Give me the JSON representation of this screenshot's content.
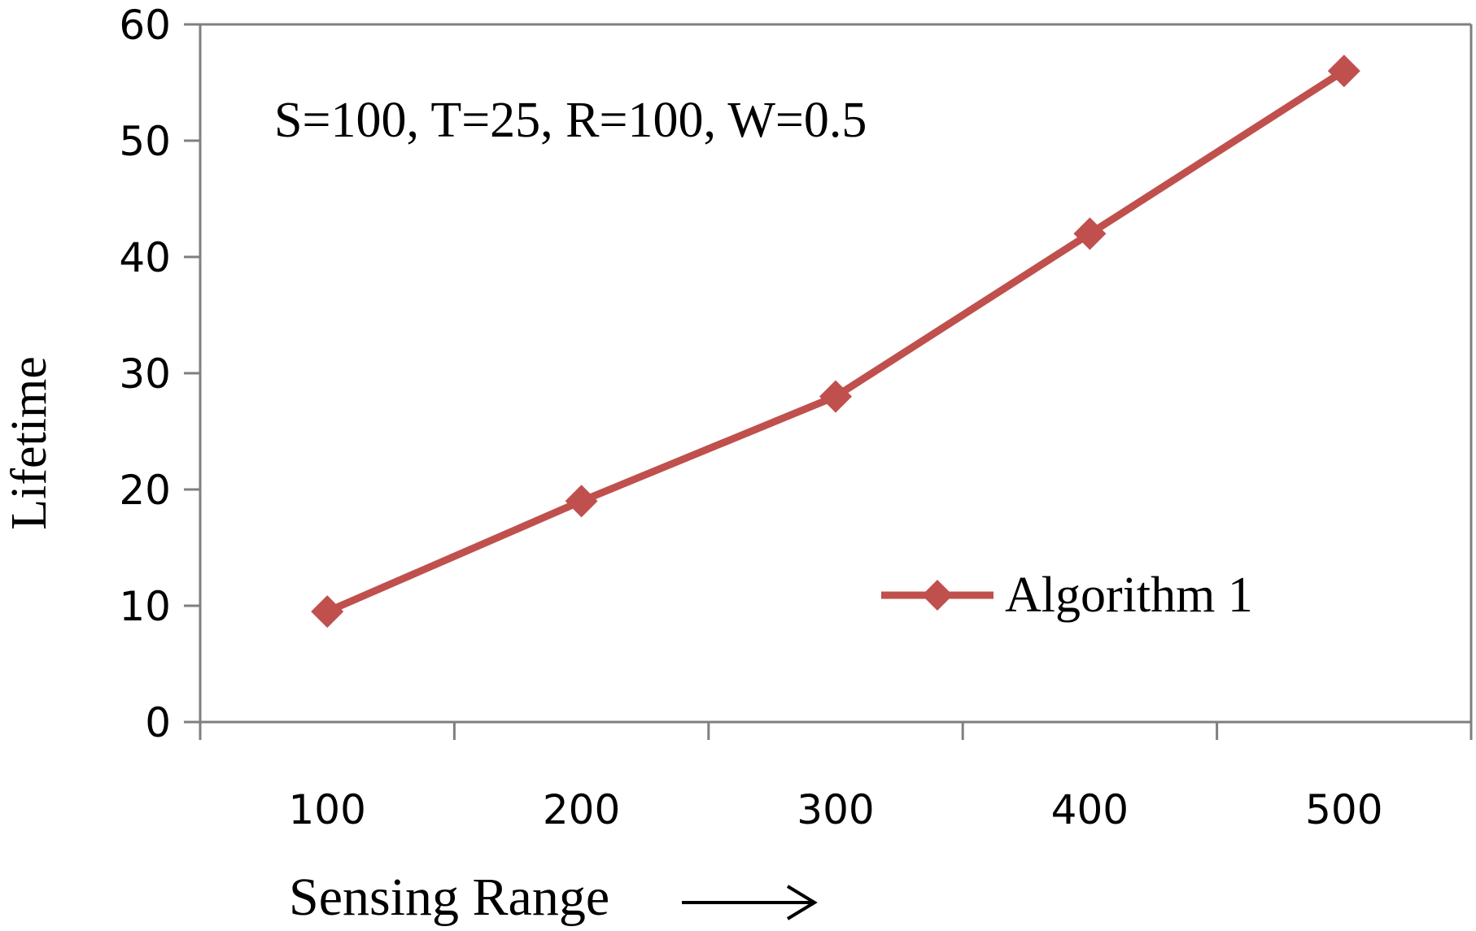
{
  "chart_data": {
    "type": "line",
    "categories": [
      "100",
      "200",
      "300",
      "400",
      "500"
    ],
    "series": [
      {
        "name": "Algorithm 1",
        "values": [
          9.5,
          19,
          28,
          42,
          56
        ],
        "color": "#c0504d",
        "marker": "diamond"
      }
    ],
    "ylim": [
      0,
      60
    ],
    "yticks": [
      "0",
      "10",
      "20",
      "30",
      "40",
      "50",
      "60"
    ],
    "xlabel": "Sensing Range",
    "ylabel": "Lifetime",
    "annotation": "S=100, T=25, R=100, W=0.5",
    "legend_position": "right",
    "grid": false
  }
}
